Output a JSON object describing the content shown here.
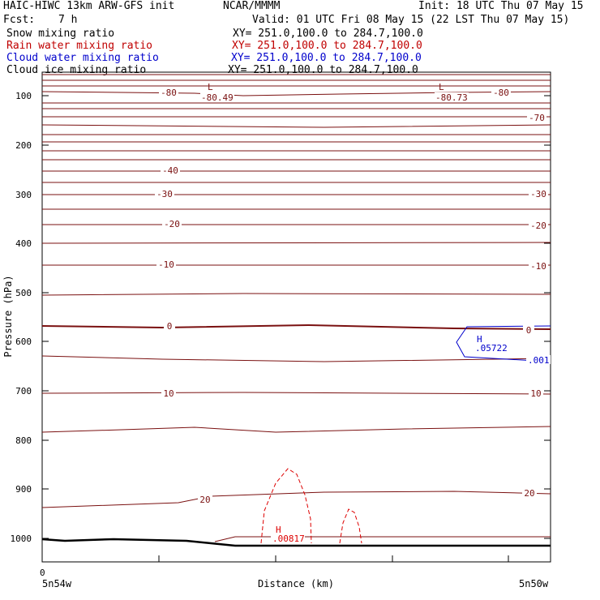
{
  "header": {
    "model": "HAIC-HIWC 13km ARW-GFS init",
    "org": "NCAR/MMMM",
    "init": "Init: 18 UTC Thu 07 May 15",
    "fcst_label": "Fcst:",
    "fcst_value": "7 h",
    "valid": "Valid: 01 UTC Fri 08 May 15 (22 LST Thu 07 May 15)"
  },
  "fields": [
    {
      "name": "Snow mixing ratio",
      "xy": "XY= 251.0,100.0 to 284.7,100.0",
      "color": "#000000"
    },
    {
      "name": "Rain water mixing ratio",
      "xy": "XY= 251.0,100.0 to 284.7,100.0",
      "color": "#cc0000"
    },
    {
      "name": "Cloud water mixing ratio",
      "xy": "XY= 251.0,100.0 to 284.7,100.0",
      "color": "#0000cc"
    },
    {
      "name": "Cloud ice mixing ratio",
      "xy": "XY= 251.0,100.0 to 284.7,100.0",
      "color": "#000000"
    }
  ],
  "chart_data": {
    "type": "line",
    "ylabel": "Pressure (hPa)",
    "xlabel": "Distance (km)",
    "y_ticks": [
      "100",
      "200",
      "300",
      "400",
      "500",
      "600",
      "700",
      "800",
      "900",
      "1000"
    ],
    "x_origin_label": "0",
    "x_left_label": "5n54w",
    "x_right_label": "5n50w",
    "colors": {
      "temp": "#7a1010",
      "rain": "#dd0000",
      "cloud": "#0000cc",
      "terrain": "#000000"
    },
    "temp_labels": [
      "-80",
      "-80",
      "-70",
      "-40",
      "-30",
      "-30",
      "-20",
      "-20",
      "-10",
      "-10",
      "0",
      "0",
      "10",
      "10",
      "20",
      "20"
    ],
    "extrema": [
      {
        "type": "L",
        "value": "-80.49"
      },
      {
        "type": "L",
        "value": "-80.73"
      },
      {
        "type": "H",
        "value": ".05722"
      },
      {
        "type": "H",
        "value": ".00817"
      }
    ],
    "cloud_contour_label": ".001"
  }
}
